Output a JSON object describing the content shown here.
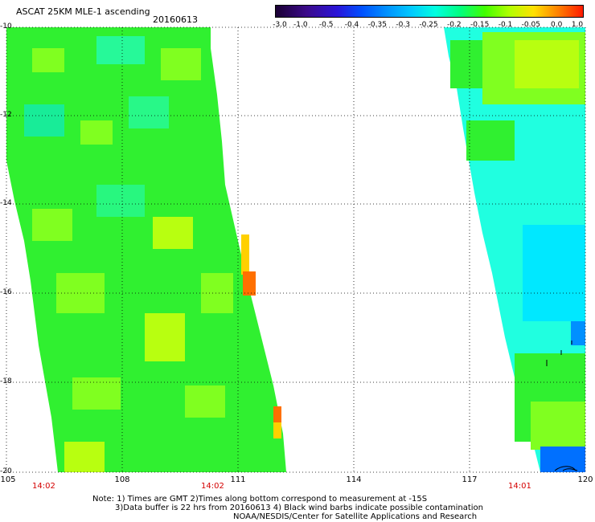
{
  "header": {
    "title": "ASCAT 25KM MLE-1 ascending",
    "date": "20160613"
  },
  "colorbar": {
    "labels": [
      "-3.0",
      "-1.0",
      "-0.5",
      "-0.4",
      "-0.35",
      "-0.3",
      "-0.25",
      "-0.2",
      "-0.15",
      "-0.1",
      "-0.05",
      "0.0",
      "1.0"
    ],
    "colors": [
      "#1a0033",
      "#3b0a8a",
      "#2a14d8",
      "#0050ff",
      "#0090ff",
      "#00c8ff",
      "#00ffe0",
      "#00ff80",
      "#40ff00",
      "#b0ff00",
      "#ffe000",
      "#ff8000",
      "#ff1a00"
    ]
  },
  "map": {
    "lat_labels": [
      "-10",
      "-12",
      "-14",
      "-16",
      "-18",
      "-20"
    ],
    "lon_labels": [
      "105",
      "108",
      "111",
      "114",
      "117",
      "120"
    ],
    "time_labels": [
      "14:02",
      "14:02",
      "14:01"
    ],
    "swath_colors": {
      "green": "#30f030",
      "lime": "#80ff20",
      "yellowgreen": "#b8ff10",
      "cyan": "#20ffe0",
      "aqua": "#00e8ff",
      "blue": "#0070ff",
      "orange": "#ff7000",
      "yellow": "#ffd000"
    }
  },
  "notes": {
    "line1": "Note: 1) Times are GMT 2)Times along bottom correspond to measurement at -15S",
    "line2": "3)Data buffer is 22 hrs from 20160613 4) Black wind barbs indicate possible contamination",
    "line3": "NOAA/NESDIS/Center for Satellite Applications and Research"
  }
}
